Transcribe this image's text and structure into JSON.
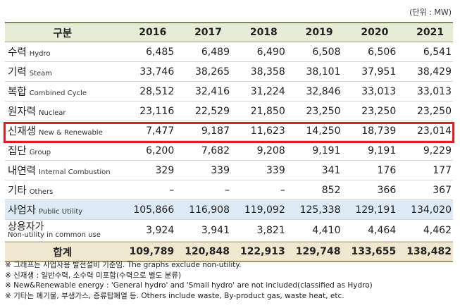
{
  "unit_label": "(단위 : MW)",
  "header": {
    "label": "구분",
    "years": [
      "2016",
      "2017",
      "2018",
      "2019",
      "2020",
      "2021"
    ]
  },
  "rows": [
    {
      "kr": "수력",
      "en": "Hydro",
      "values": [
        "6,485",
        "6,489",
        "6,490",
        "6,508",
        "6,506",
        "6,541"
      ]
    },
    {
      "kr": "기력",
      "en": "Steam",
      "values": [
        "33,746",
        "38,265",
        "38,358",
        "38,101",
        "37,951",
        "38,429"
      ]
    },
    {
      "kr": "복합",
      "en": "Combined Cycle",
      "values": [
        "28,512",
        "32,416",
        "31,224",
        "32,846",
        "33,013",
        "33,013"
      ]
    },
    {
      "kr": "원자력",
      "en": "Nuclear",
      "values": [
        "23,116",
        "22,529",
        "21,850",
        "23,250",
        "23,250",
        "23,250"
      ]
    },
    {
      "kr": "신재생",
      "en": "New & Renewable",
      "values": [
        "7,477",
        "9,187",
        "11,623",
        "14,250",
        "18,739",
        "23,014"
      ]
    },
    {
      "kr": "집단",
      "en": "Group",
      "values": [
        "6,200",
        "7,682",
        "9,208",
        "9,191",
        "9,191",
        "9,229"
      ]
    },
    {
      "kr": "내연력",
      "en": "Internal Combustion",
      "values": [
        "329",
        "339",
        "339",
        "341",
        "176",
        "177"
      ]
    },
    {
      "kr": "기타",
      "en": "Others",
      "values": [
        "–",
        "–",
        "–",
        "852",
        "366",
        "367"
      ]
    }
  ],
  "public_utility": {
    "kr": "사업자",
    "en": "Public Utility",
    "values": [
      "105,866",
      "116,908",
      "119,092",
      "125,338",
      "129,191",
      "134,020"
    ]
  },
  "non_utility": {
    "kr": "상용자가",
    "en": "Non-utility in common use",
    "values": [
      "3,924",
      "3,941",
      "3,821",
      "4,410",
      "4,464",
      "4,462"
    ]
  },
  "total": {
    "label": "합계",
    "values": [
      "109,789",
      "120,848",
      "122,913",
      "129,748",
      "133,655",
      "138,482"
    ]
  },
  "notes": [
    "※ 그래프는 사업자용 발전설비 기준임. The graphs exclude non-utility.",
    "※ 신재생 : 일반수력, 소수력 미포함(수력으로 별도 분류)",
    "※ New&Renewable energy : 'General hydro' and 'Small hydro' are not included(classified as Hydro)",
    "※ 기타는 폐기물, 부생가스, 증류탑폐열 등. Others include waste, By-product gas, waste heat, etc."
  ],
  "colors": {
    "highlight": "#e21d24",
    "header_bg": "#e6ecd6",
    "utility_bg": "#dceaf6",
    "total_bg": "#efe8cf"
  }
}
